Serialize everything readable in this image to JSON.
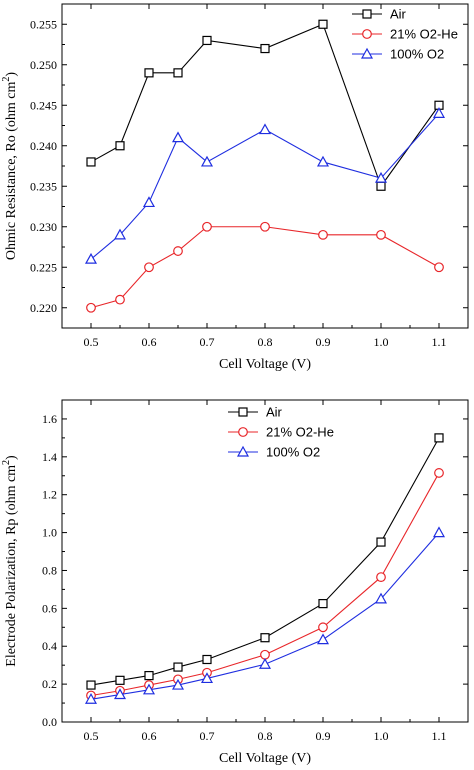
{
  "chart_data": [
    {
      "type": "line",
      "xlabel": "Cell Voltage (V)",
      "ylabel": "Ohmic Resistance, Ro (ohm cm",
      "ylabel_sup": "2",
      "ylabel_tail": ")",
      "xlim": [
        0.45,
        1.15
      ],
      "ylim": [
        0.2175,
        0.2575
      ],
      "xticks": [
        0.5,
        0.6,
        0.7,
        0.8,
        0.9,
        1.0,
        1.1
      ],
      "xtick_labels": [
        "0.5",
        "0.6",
        "0.7",
        "0.8",
        "0.9",
        "1.0",
        "1.1"
      ],
      "yticks": [
        0.22,
        0.225,
        0.23,
        0.235,
        0.24,
        0.245,
        0.25,
        0.255
      ],
      "ytick_labels": [
        "0.220",
        "0.225",
        "0.230",
        "0.235",
        "0.240",
        "0.245",
        "0.250",
        "0.255"
      ],
      "legend_position": "top-right",
      "x": [
        0.5,
        0.55,
        0.6,
        0.65,
        0.7,
        0.8,
        0.9,
        1.0,
        1.1
      ],
      "series": [
        {
          "name": "Air",
          "color": "#000000",
          "marker": "square",
          "values": [
            0.238,
            0.24,
            0.249,
            0.249,
            0.253,
            0.252,
            0.255,
            0.235,
            0.245
          ]
        },
        {
          "name": "21% O2-He",
          "color": "#e8262a",
          "marker": "circle",
          "values": [
            0.22,
            0.221,
            0.225,
            0.227,
            0.23,
            0.23,
            0.229,
            0.229,
            0.225
          ]
        },
        {
          "name": "100% O2",
          "color": "#1f2ee0",
          "marker": "triangle",
          "values": [
            0.226,
            0.229,
            0.233,
            0.241,
            0.238,
            0.242,
            0.238,
            0.236,
            0.244
          ]
        }
      ]
    },
    {
      "type": "line",
      "xlabel": "Cell Voltage (V)",
      "ylabel": "Electrode Polarization, Rp (ohm cm",
      "ylabel_sup": "2",
      "ylabel_tail": ")",
      "xlim": [
        0.45,
        1.15
      ],
      "ylim": [
        0,
        1.7
      ],
      "xticks": [
        0.5,
        0.6,
        0.7,
        0.8,
        0.9,
        1.0,
        1.1
      ],
      "xtick_labels": [
        "0.5",
        "0.6",
        "0.7",
        "0.8",
        "0.9",
        "1.0",
        "1.1"
      ],
      "yticks": [
        0.0,
        0.2,
        0.4,
        0.6,
        0.8,
        1.0,
        1.2,
        1.4,
        1.6
      ],
      "ytick_labels": [
        "0.0",
        "0.2",
        "0.4",
        "0.6",
        "0.8",
        "1.0",
        "1.2",
        "1.4",
        "1.6"
      ],
      "legend_position": "top-left",
      "x": [
        0.5,
        0.55,
        0.6,
        0.65,
        0.7,
        0.8,
        0.9,
        1.0,
        1.1
      ],
      "series": [
        {
          "name": "Air",
          "color": "#000000",
          "marker": "square",
          "values": [
            0.195,
            0.22,
            0.245,
            0.29,
            0.33,
            0.445,
            0.625,
            0.95,
            1.5
          ]
        },
        {
          "name": "21% O2-He",
          "color": "#e8262a",
          "marker": "circle",
          "values": [
            0.14,
            0.165,
            0.195,
            0.225,
            0.26,
            0.355,
            0.5,
            0.765,
            1.315
          ]
        },
        {
          "name": "100% O2",
          "color": "#1f2ee0",
          "marker": "triangle",
          "values": [
            0.12,
            0.145,
            0.17,
            0.195,
            0.23,
            0.305,
            0.435,
            0.65,
            1.0
          ]
        }
      ]
    }
  ]
}
